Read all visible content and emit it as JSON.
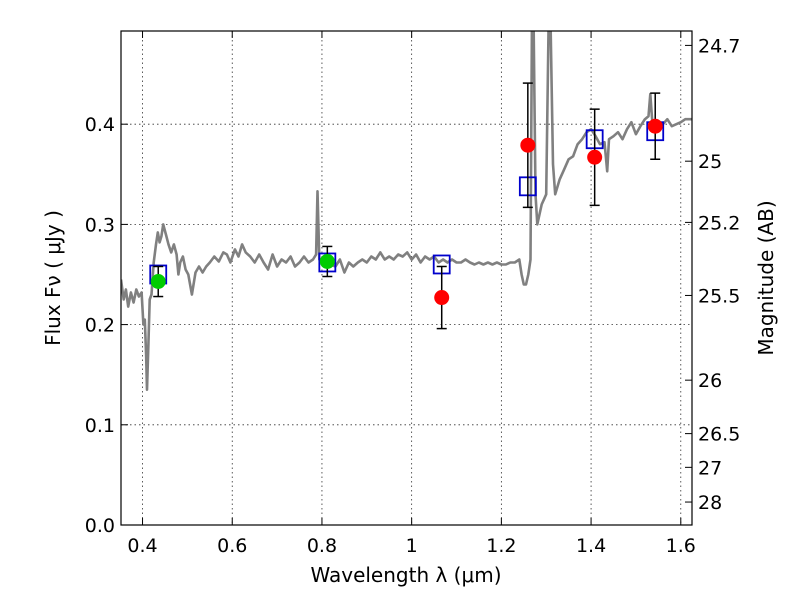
{
  "chart_data": {
    "type": "scatter",
    "title": "",
    "xlabel": "Wavelength  λ (μm)",
    "ylabel": "Flux  Fν  ( μJy )",
    "ylabel_right": "Magnitude (AB)",
    "xlim": [
      0.352,
      1.625
    ],
    "ylim": [
      0.0,
      0.493
    ],
    "grid": true,
    "x_ticks": [
      "0.4",
      "0.6",
      "0.8",
      "1",
      "1.2",
      "1.4",
      "1.6"
    ],
    "y_ticks": [
      "0.0",
      "0.1",
      "0.2",
      "0.3",
      "0.4"
    ],
    "right_ticks": [
      "24.7",
      "25",
      "25.2",
      "25.5",
      "26",
      "26.5",
      "27",
      "28"
    ],
    "series": [
      {
        "marker": "line",
        "color": "#808080",
        "points": [
          [
            0.352,
            0.245
          ],
          [
            0.358,
            0.225
          ],
          [
            0.363,
            0.235
          ],
          [
            0.368,
            0.218
          ],
          [
            0.374,
            0.232
          ],
          [
            0.38,
            0.222
          ],
          [
            0.386,
            0.235
          ],
          [
            0.392,
            0.228
          ],
          [
            0.398,
            0.232
          ],
          [
            0.402,
            0.2
          ],
          [
            0.405,
            0.205
          ],
          [
            0.408,
            0.17
          ],
          [
            0.41,
            0.135
          ],
          [
            0.413,
            0.18
          ],
          [
            0.416,
            0.225
          ],
          [
            0.42,
            0.23
          ],
          [
            0.425,
            0.262
          ],
          [
            0.43,
            0.28
          ],
          [
            0.434,
            0.292
          ],
          [
            0.438,
            0.282
          ],
          [
            0.442,
            0.288
          ],
          [
            0.446,
            0.3
          ],
          [
            0.452,
            0.29
          ],
          [
            0.458,
            0.28
          ],
          [
            0.464,
            0.272
          ],
          [
            0.47,
            0.28
          ],
          [
            0.476,
            0.27
          ],
          [
            0.48,
            0.25
          ],
          [
            0.484,
            0.262
          ],
          [
            0.49,
            0.268
          ],
          [
            0.496,
            0.255
          ],
          [
            0.502,
            0.25
          ],
          [
            0.51,
            0.23
          ],
          [
            0.518,
            0.252
          ],
          [
            0.526,
            0.258
          ],
          [
            0.534,
            0.252
          ],
          [
            0.542,
            0.258
          ],
          [
            0.55,
            0.262
          ],
          [
            0.56,
            0.268
          ],
          [
            0.57,
            0.263
          ],
          [
            0.58,
            0.272
          ],
          [
            0.588,
            0.27
          ],
          [
            0.596,
            0.262
          ],
          [
            0.606,
            0.275
          ],
          [
            0.614,
            0.268
          ],
          [
            0.622,
            0.28
          ],
          [
            0.63,
            0.272
          ],
          [
            0.64,
            0.268
          ],
          [
            0.65,
            0.262
          ],
          [
            0.66,
            0.27
          ],
          [
            0.67,
            0.262
          ],
          [
            0.68,
            0.255
          ],
          [
            0.69,
            0.27
          ],
          [
            0.7,
            0.258
          ],
          [
            0.71,
            0.265
          ],
          [
            0.72,
            0.262
          ],
          [
            0.73,
            0.268
          ],
          [
            0.74,
            0.258
          ],
          [
            0.75,
            0.262
          ],
          [
            0.76,
            0.268
          ],
          [
            0.77,
            0.262
          ],
          [
            0.78,
            0.265
          ],
          [
            0.787,
            0.27
          ],
          [
            0.79,
            0.333
          ],
          [
            0.794,
            0.265
          ],
          [
            0.8,
            0.262
          ],
          [
            0.81,
            0.268
          ],
          [
            0.82,
            0.26
          ],
          [
            0.83,
            0.258
          ],
          [
            0.84,
            0.265
          ],
          [
            0.85,
            0.252
          ],
          [
            0.86,
            0.262
          ],
          [
            0.87,
            0.258
          ],
          [
            0.88,
            0.262
          ],
          [
            0.89,
            0.265
          ],
          [
            0.9,
            0.262
          ],
          [
            0.91,
            0.268
          ],
          [
            0.92,
            0.265
          ],
          [
            0.93,
            0.272
          ],
          [
            0.94,
            0.265
          ],
          [
            0.95,
            0.268
          ],
          [
            0.96,
            0.265
          ],
          [
            0.97,
            0.27
          ],
          [
            0.98,
            0.268
          ],
          [
            0.99,
            0.272
          ],
          [
            1.0,
            0.265
          ],
          [
            1.01,
            0.27
          ],
          [
            1.02,
            0.262
          ],
          [
            1.03,
            0.268
          ],
          [
            1.04,
            0.265
          ],
          [
            1.05,
            0.268
          ],
          [
            1.06,
            0.262
          ],
          [
            1.07,
            0.265
          ],
          [
            1.08,
            0.262
          ],
          [
            1.09,
            0.265
          ],
          [
            1.1,
            0.262
          ],
          [
            1.11,
            0.262
          ],
          [
            1.12,
            0.265
          ],
          [
            1.13,
            0.262
          ],
          [
            1.14,
            0.26
          ],
          [
            1.15,
            0.262
          ],
          [
            1.16,
            0.26
          ],
          [
            1.17,
            0.262
          ],
          [
            1.18,
            0.26
          ],
          [
            1.19,
            0.262
          ],
          [
            1.2,
            0.26
          ],
          [
            1.21,
            0.26
          ],
          [
            1.22,
            0.262
          ],
          [
            1.23,
            0.262
          ],
          [
            1.24,
            0.265
          ],
          [
            1.245,
            0.25
          ],
          [
            1.25,
            0.24
          ],
          [
            1.255,
            0.24
          ],
          [
            1.26,
            0.25
          ],
          [
            1.265,
            0.265
          ],
          [
            1.268,
            0.493
          ],
          [
            1.272,
            0.493
          ],
          [
            1.276,
            0.33
          ],
          [
            1.28,
            0.3
          ],
          [
            1.285,
            0.31
          ],
          [
            1.29,
            0.32
          ],
          [
            1.295,
            0.325
          ],
          [
            1.3,
            0.33
          ],
          [
            1.305,
            0.493
          ],
          [
            1.31,
            0.493
          ],
          [
            1.315,
            0.36
          ],
          [
            1.32,
            0.33
          ],
          [
            1.33,
            0.345
          ],
          [
            1.34,
            0.355
          ],
          [
            1.35,
            0.365
          ],
          [
            1.36,
            0.368
          ],
          [
            1.37,
            0.38
          ],
          [
            1.38,
            0.385
          ],
          [
            1.39,
            0.392
          ],
          [
            1.4,
            0.395
          ],
          [
            1.41,
            0.388
          ],
          [
            1.42,
            0.38
          ],
          [
            1.43,
            0.382
          ],
          [
            1.436,
            0.353
          ],
          [
            1.44,
            0.385
          ],
          [
            1.45,
            0.388
          ],
          [
            1.46,
            0.392
          ],
          [
            1.47,
            0.385
          ],
          [
            1.48,
            0.395
          ],
          [
            1.49,
            0.402
          ],
          [
            1.5,
            0.39
          ],
          [
            1.51,
            0.398
          ],
          [
            1.52,
            0.405
          ],
          [
            1.528,
            0.408
          ],
          [
            1.532,
            0.43
          ],
          [
            1.536,
            0.405
          ],
          [
            1.54,
            0.4
          ],
          [
            1.55,
            0.402
          ],
          [
            1.56,
            0.4
          ],
          [
            1.57,
            0.405
          ],
          [
            1.58,
            0.398
          ],
          [
            1.59,
            0.4
          ],
          [
            1.6,
            0.402
          ],
          [
            1.61,
            0.405
          ],
          [
            1.625,
            0.405
          ]
        ]
      },
      {
        "marker": "open-square",
        "color": "#0000cc",
        "points": [
          [
            0.435,
            0.25
          ],
          [
            0.812,
            0.262
          ],
          [
            1.067,
            0.26
          ],
          [
            1.259,
            0.338
          ],
          [
            1.408,
            0.385
          ],
          [
            1.543,
            0.393
          ]
        ]
      },
      {
        "marker": "circle",
        "color": "#00cc00",
        "points": [
          [
            0.435,
            0.243,
            0.015
          ],
          [
            0.812,
            0.263,
            0.015
          ]
        ]
      },
      {
        "marker": "circle",
        "color": "#ff0000",
        "points": [
          [
            1.067,
            0.227,
            0.031
          ],
          [
            1.259,
            0.379,
            0.062
          ],
          [
            1.408,
            0.367,
            0.048
          ],
          [
            1.543,
            0.398,
            0.033
          ]
        ]
      }
    ]
  }
}
